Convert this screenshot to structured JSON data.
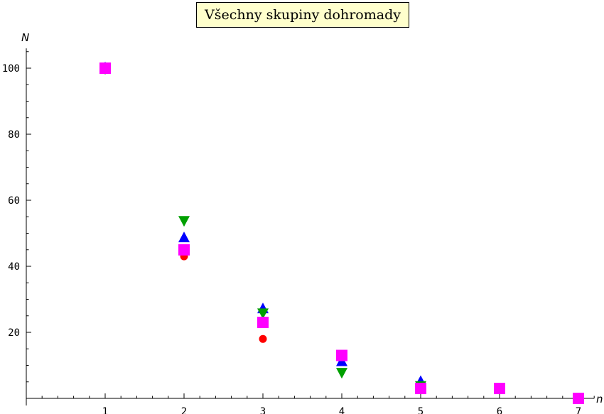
{
  "chart_data": {
    "type": "scatter",
    "title": "Všechny skupiny dohromady",
    "xlabel": "n",
    "ylabel": "N",
    "xlim": [
      0,
      7.2
    ],
    "ylim": [
      0,
      106
    ],
    "x_ticks": [
      1,
      2,
      3,
      4,
      5,
      6,
      7
    ],
    "y_ticks": [
      20,
      40,
      60,
      80,
      100
    ],
    "grid": false,
    "series": [
      {
        "marker": "circle",
        "color": "#ff0000",
        "points": [
          [
            1,
            100
          ],
          [
            2,
            43
          ],
          [
            3,
            18
          ],
          [
            4,
            12
          ],
          [
            5,
            4
          ]
        ]
      },
      {
        "marker": "triangle-up",
        "color": "#0000ff",
        "points": [
          [
            1,
            100
          ],
          [
            2,
            48.5
          ],
          [
            3,
            27
          ],
          [
            4,
            11
          ],
          [
            5,
            5
          ]
        ]
      },
      {
        "marker": "triangle-down",
        "color": "#00a000",
        "points": [
          [
            1,
            100
          ],
          [
            2,
            54
          ],
          [
            3,
            26
          ],
          [
            4,
            8
          ],
          [
            5,
            4
          ]
        ]
      },
      {
        "marker": "square",
        "color": "#ff00ff",
        "points": [
          [
            1,
            100
          ],
          [
            2,
            45
          ],
          [
            3,
            23
          ],
          [
            4,
            13
          ],
          [
            5,
            3
          ],
          [
            6,
            3
          ],
          [
            7,
            0
          ]
        ]
      }
    ]
  }
}
